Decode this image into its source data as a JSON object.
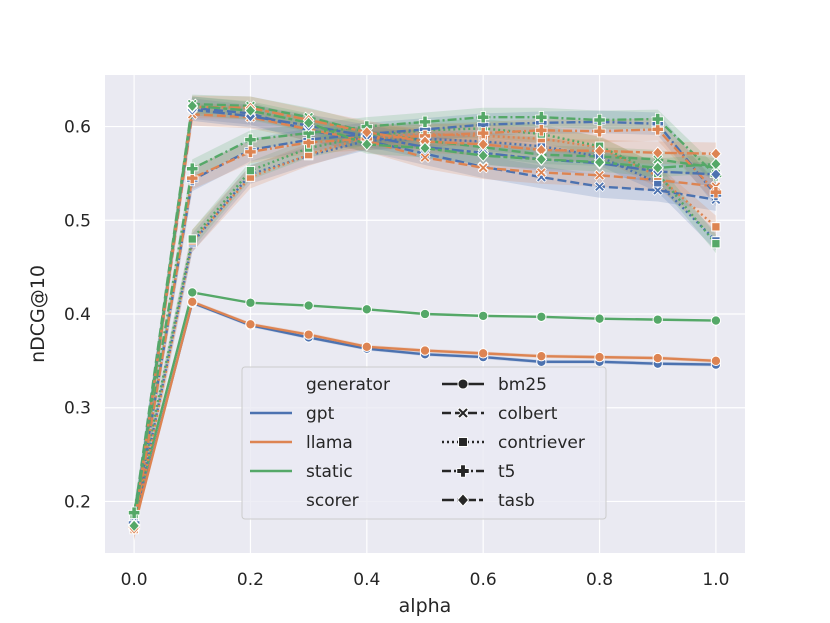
{
  "chart_data": {
    "type": "line",
    "title": "",
    "xlabel": "alpha",
    "ylabel": "nDCG@10",
    "xlim": [
      -0.05,
      1.05
    ],
    "ylim": [
      0.145,
      0.655
    ],
    "x": [
      0.0,
      0.1,
      0.2,
      0.3,
      0.4,
      0.5,
      0.6,
      0.7,
      0.8,
      0.9,
      1.0
    ],
    "xticks": [
      "0.0",
      "0.2",
      "0.4",
      "0.6",
      "0.8",
      "1.0"
    ],
    "yticks": [
      "0.2",
      "0.3",
      "0.4",
      "0.5",
      "0.6"
    ],
    "grid": true,
    "legend_placement": "lower-center",
    "colors": {
      "gpt": "#4c72b0",
      "llama": "#dd8452",
      "static": "#55a868",
      "background": "#eaeaf2",
      "grid": "#ffffff",
      "marker_edge": "#ffffff"
    },
    "legend": {
      "generator_title": "generator",
      "scorer_title": "scorer",
      "generators": [
        {
          "key": "gpt",
          "label": "gpt"
        },
        {
          "key": "llama",
          "label": "llama"
        },
        {
          "key": "static",
          "label": "static"
        }
      ],
      "scorers": [
        {
          "key": "bm25",
          "label": "bm25",
          "marker": "circle",
          "dash": "solid"
        },
        {
          "key": "colbert",
          "label": "colbert",
          "marker": "x",
          "dash": "dashed"
        },
        {
          "key": "contriever",
          "label": "contriever",
          "marker": "square",
          "dash": "dotted"
        },
        {
          "key": "t5",
          "label": "t5",
          "marker": "plus",
          "dash": "dashdot"
        },
        {
          "key": "tasb",
          "label": "tasb",
          "marker": "diamond",
          "dash": "longdash"
        }
      ]
    },
    "series": [
      {
        "name": "gpt / bm25",
        "generator": "gpt",
        "scorer": "bm25",
        "band": 0.002,
        "values": [
          0.175,
          0.412,
          0.388,
          0.375,
          0.363,
          0.357,
          0.354,
          0.349,
          0.349,
          0.347,
          0.346
        ]
      },
      {
        "name": "llama / bm25",
        "generator": "llama",
        "scorer": "bm25",
        "band": 0.002,
        "values": [
          0.172,
          0.413,
          0.389,
          0.378,
          0.365,
          0.361,
          0.358,
          0.355,
          0.354,
          0.353,
          0.35
        ]
      },
      {
        "name": "static / bm25",
        "generator": "static",
        "scorer": "bm25",
        "band": 0.001,
        "values": [
          0.185,
          0.423,
          0.412,
          0.409,
          0.405,
          0.4,
          0.398,
          0.397,
          0.395,
          0.394,
          0.393
        ]
      },
      {
        "name": "gpt / colbert",
        "generator": "gpt",
        "scorer": "colbert",
        "band": 0.012,
        "values": [
          0.176,
          0.62,
          0.614,
          0.596,
          0.585,
          0.571,
          0.557,
          0.546,
          0.536,
          0.532,
          0.522
        ]
      },
      {
        "name": "llama / colbert",
        "generator": "llama",
        "scorer": "colbert",
        "band": 0.012,
        "values": [
          0.172,
          0.613,
          0.61,
          0.597,
          0.585,
          0.567,
          0.556,
          0.551,
          0.548,
          0.543,
          0.536
        ]
      },
      {
        "name": "static / colbert",
        "generator": "static",
        "scorer": "colbert",
        "band": 0.01,
        "values": [
          0.183,
          0.624,
          0.622,
          0.61,
          0.594,
          0.585,
          0.578,
          0.57,
          0.568,
          0.565,
          0.556
        ]
      },
      {
        "name": "gpt / contriever",
        "generator": "gpt",
        "scorer": "contriever",
        "band": 0.01,
        "values": [
          0.177,
          0.476,
          0.549,
          0.569,
          0.585,
          0.587,
          0.584,
          0.579,
          0.568,
          0.54,
          0.478
        ]
      },
      {
        "name": "llama / contriever",
        "generator": "llama",
        "scorer": "contriever",
        "band": 0.012,
        "values": [
          0.17,
          0.478,
          0.546,
          0.57,
          0.589,
          0.592,
          0.59,
          0.587,
          0.578,
          0.547,
          0.493
        ]
      },
      {
        "name": "static / contriever",
        "generator": "static",
        "scorer": "contriever",
        "band": 0.01,
        "values": [
          0.186,
          0.48,
          0.553,
          0.577,
          0.59,
          0.596,
          0.598,
          0.592,
          0.579,
          0.55,
          0.475
        ]
      },
      {
        "name": "gpt / t5",
        "generator": "gpt",
        "scorer": "t5",
        "band": 0.012,
        "values": [
          0.177,
          0.543,
          0.575,
          0.586,
          0.592,
          0.597,
          0.602,
          0.604,
          0.605,
          0.603,
          0.527
        ]
      },
      {
        "name": "llama / t5",
        "generator": "llama",
        "scorer": "t5",
        "band": 0.012,
        "values": [
          0.173,
          0.545,
          0.573,
          0.583,
          0.587,
          0.59,
          0.593,
          0.596,
          0.595,
          0.597,
          0.53
        ]
      },
      {
        "name": "static / t5",
        "generator": "static",
        "scorer": "t5",
        "band": 0.01,
        "values": [
          0.188,
          0.555,
          0.586,
          0.593,
          0.6,
          0.605,
          0.61,
          0.61,
          0.607,
          0.608,
          0.548
        ]
      },
      {
        "name": "gpt / tasb",
        "generator": "gpt",
        "scorer": "tasb",
        "band": 0.012,
        "values": [
          0.175,
          0.618,
          0.611,
          0.601,
          0.59,
          0.578,
          0.572,
          0.565,
          0.561,
          0.552,
          0.549
        ]
      },
      {
        "name": "llama / tasb",
        "generator": "llama",
        "scorer": "tasb",
        "band": 0.012,
        "values": [
          0.171,
          0.621,
          0.62,
          0.607,
          0.594,
          0.584,
          0.581,
          0.575,
          0.574,
          0.572,
          0.571
        ]
      },
      {
        "name": "static / tasb",
        "generator": "static",
        "scorer": "tasb",
        "band": 0.01,
        "values": [
          0.174,
          0.622,
          0.617,
          0.604,
          0.581,
          0.577,
          0.569,
          0.565,
          0.562,
          0.556,
          0.56
        ]
      }
    ]
  }
}
